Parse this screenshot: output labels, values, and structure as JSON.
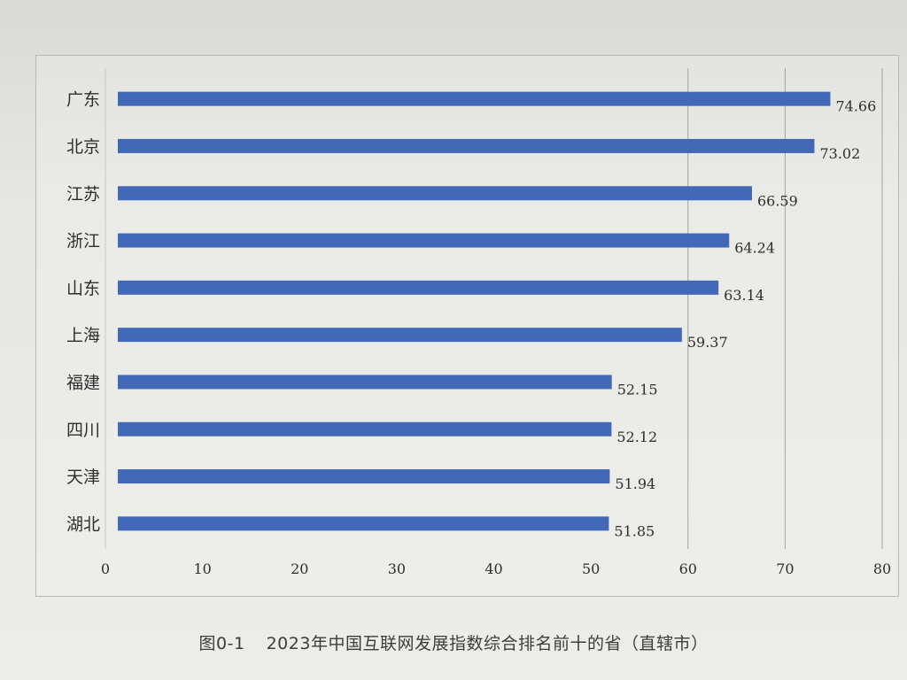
{
  "caption": {
    "figure_number": "图0-1",
    "text": "2023年中国互联网发展指数综合排名前十的省（直辖市）"
  },
  "chart_data": {
    "type": "bar",
    "orientation": "horizontal",
    "categories": [
      "广东",
      "北京",
      "江苏",
      "浙江",
      "山东",
      "上海",
      "福建",
      "四川",
      "天津",
      "湖北"
    ],
    "values": [
      74.66,
      73.02,
      66.59,
      64.24,
      63.14,
      59.37,
      52.15,
      52.12,
      51.94,
      51.85
    ],
    "data_labels": [
      "74.66",
      "73.02",
      "66.59",
      "64.24",
      "63.14",
      "59.37",
      "52.15",
      "52.12",
      "51.94",
      "51.85"
    ],
    "xlim": [
      0,
      80
    ],
    "xticks": [
      "0",
      "10",
      "20",
      "30",
      "40",
      "50",
      "60",
      "70",
      "80"
    ],
    "grid": "vertical",
    "bar_color": "#4169b7",
    "title": "",
    "xlabel": "",
    "ylabel": ""
  }
}
